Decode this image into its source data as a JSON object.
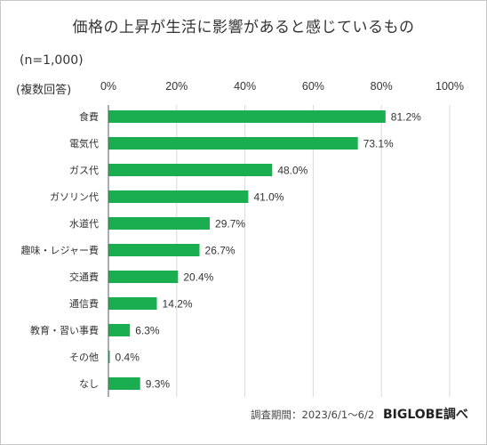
{
  "title": "価格の上昇が生活に影響があると感じているもの",
  "sample_note": "(n=1,000)",
  "multiple_answer_note": "(複数回答)",
  "source_note": "調査期間：2023/6/1～6/2",
  "brand": "BIGLOBE調べ",
  "colors": {
    "bar": "#1aae50",
    "grid": "#d9d9d9",
    "axis": "#595959"
  },
  "chart_data": {
    "type": "bar",
    "orientation": "horizontal",
    "title": "価格の上昇が生活に影響があると感じているもの",
    "categories": [
      "食費",
      "電気代",
      "ガス代",
      "ガソリン代",
      "水道代",
      "趣味・レジャー費",
      "交通費",
      "通信費",
      "教育・習い事費",
      "その他",
      "なし"
    ],
    "values": [
      81.2,
      73.1,
      48.0,
      41.0,
      29.7,
      26.7,
      20.4,
      14.2,
      6.3,
      0.4,
      9.3
    ],
    "value_labels": [
      "81.2%",
      "73.1%",
      "48.0%",
      "41.0%",
      "29.7%",
      "26.7%",
      "20.4%",
      "14.2%",
      "6.3%",
      "0.4%",
      "9.3%"
    ],
    "xlim": [
      0,
      100
    ],
    "xticks": [
      0,
      20,
      40,
      60,
      80,
      100
    ],
    "xtick_labels": [
      "0%",
      "20%",
      "40%",
      "60%",
      "80%",
      "100%"
    ],
    "grid": true,
    "legend": "none"
  }
}
